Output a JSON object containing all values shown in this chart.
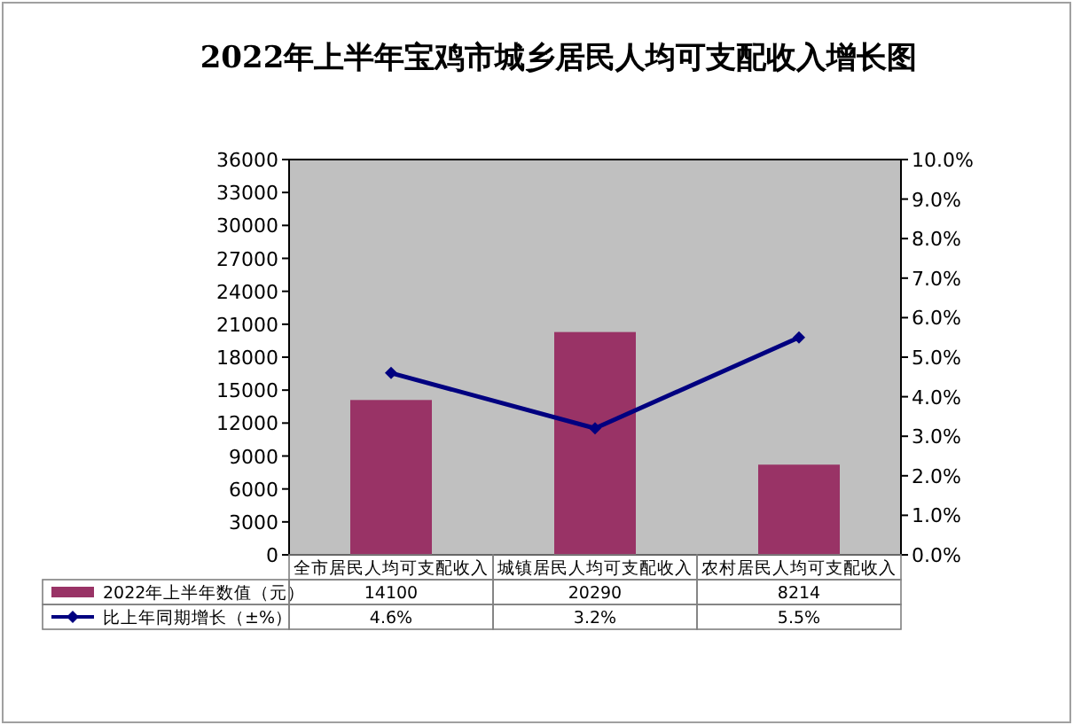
{
  "chart_data": {
    "type": "bar",
    "title": "2022年上半年宝鸡市城乡居民人均可支配收入增长图",
    "categories": [
      "全市居民人均可支配收入",
      "城镇居民人均可支配收入",
      "农村居民人均可支配收入"
    ],
    "series": [
      {
        "name": "2022年上半年数值（元）",
        "color": "#993366",
        "values": [
          14100,
          20290,
          8214
        ],
        "value_labels": [
          "14100",
          "20290",
          "8214"
        ]
      },
      {
        "name": "比上年同期增长（±%）",
        "type": "line",
        "axis": "y2",
        "color": "#000080",
        "values": [
          4.6,
          3.2,
          5.5
        ],
        "value_labels": [
          "4.6%",
          "3.2%",
          "5.5%"
        ]
      }
    ],
    "ylim": [
      0,
      36000
    ],
    "yticks": [
      0,
      3000,
      6000,
      9000,
      12000,
      15000,
      18000,
      21000,
      24000,
      27000,
      30000,
      33000,
      36000
    ],
    "y2lim": [
      0,
      10
    ],
    "y2ticks": [
      {
        "value": 0,
        "label": "0.0%"
      },
      {
        "value": 1,
        "label": "1.0%"
      },
      {
        "value": 2,
        "label": "2.0%"
      },
      {
        "value": 3,
        "label": "3.0%"
      },
      {
        "value": 4,
        "label": "4.0%"
      },
      {
        "value": 5,
        "label": "5.0%"
      },
      {
        "value": 6,
        "label": "6.0%"
      },
      {
        "value": 7,
        "label": "7.0%"
      },
      {
        "value": 8,
        "label": "8.0%"
      },
      {
        "value": 9,
        "label": "9.0%"
      },
      {
        "value": 10,
        "label": "10.0%"
      }
    ],
    "marker": "diamond",
    "legend": "bottom",
    "grid": false
  }
}
